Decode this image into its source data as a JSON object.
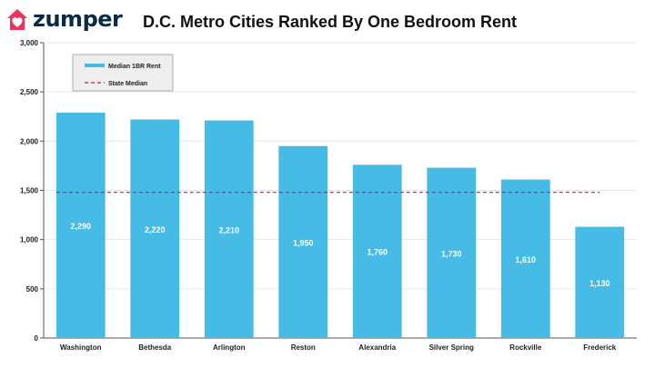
{
  "brand": {
    "name": "zumper",
    "icon": "house-heart-icon",
    "color": "#e8345e"
  },
  "chart_data": {
    "type": "bar",
    "title": "D.C. Metro Cities Ranked By One Bedroom Rent",
    "categories": [
      "Washington",
      "Bethesda",
      "Arlington",
      "Reston",
      "Alexandria",
      "Silver Spring",
      "Rockville",
      "Frederick"
    ],
    "series": [
      {
        "name": "Median 1BR Rent",
        "values": [
          2290,
          2220,
          2210,
          1950,
          1760,
          1730,
          1610,
          1130
        ],
        "data_labels": [
          "2,290",
          "2,220",
          "2,210",
          "1,950",
          "1,760",
          "1,730",
          "1,610",
          "1,130"
        ],
        "color": "#45bbe5"
      }
    ],
    "reference_line": {
      "name": "State Median",
      "value": 1480,
      "style": "dashed",
      "color": "#c0186a"
    },
    "yticks": [
      0,
      500,
      1000,
      1500,
      2000,
      2500,
      3000
    ],
    "ytick_labels": [
      "0",
      "500",
      "1,000",
      "1,500",
      "2,000",
      "2,500",
      "3,000"
    ],
    "ylim": [
      0,
      3000
    ],
    "xlabel": "",
    "ylabel": "",
    "grid": true,
    "legend_position": "top-left"
  }
}
